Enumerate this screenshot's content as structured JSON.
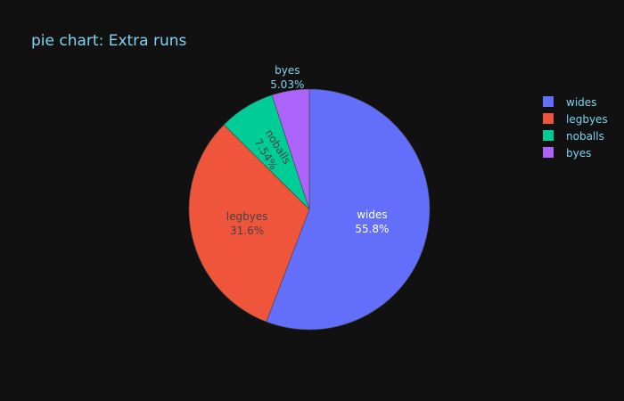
{
  "chart_data": {
    "type": "pie",
    "title": "pie chart: Extra runs",
    "slices": [
      {
        "label": "wides",
        "percent": 55.8,
        "percent_text": "55.8%",
        "color": "#636efa",
        "text_color": "#ffffff",
        "label_position": "inside"
      },
      {
        "label": "legbyes",
        "percent": 31.6,
        "percent_text": "31.6%",
        "color": "#ef553b",
        "text_color": "#444444",
        "label_position": "inside"
      },
      {
        "label": "noballs",
        "percent": 7.54,
        "percent_text": "7.54%",
        "color": "#00cc96",
        "text_color": "#444444",
        "label_position": "inside",
        "label_rotated": true
      },
      {
        "label": "byes",
        "percent": 5.03,
        "percent_text": "5.03%",
        "color": "#ab63fa",
        "text_color": "#7fd4ee",
        "label_position": "outside"
      }
    ],
    "direction": "clockwise",
    "legend_placement": "top-right"
  }
}
